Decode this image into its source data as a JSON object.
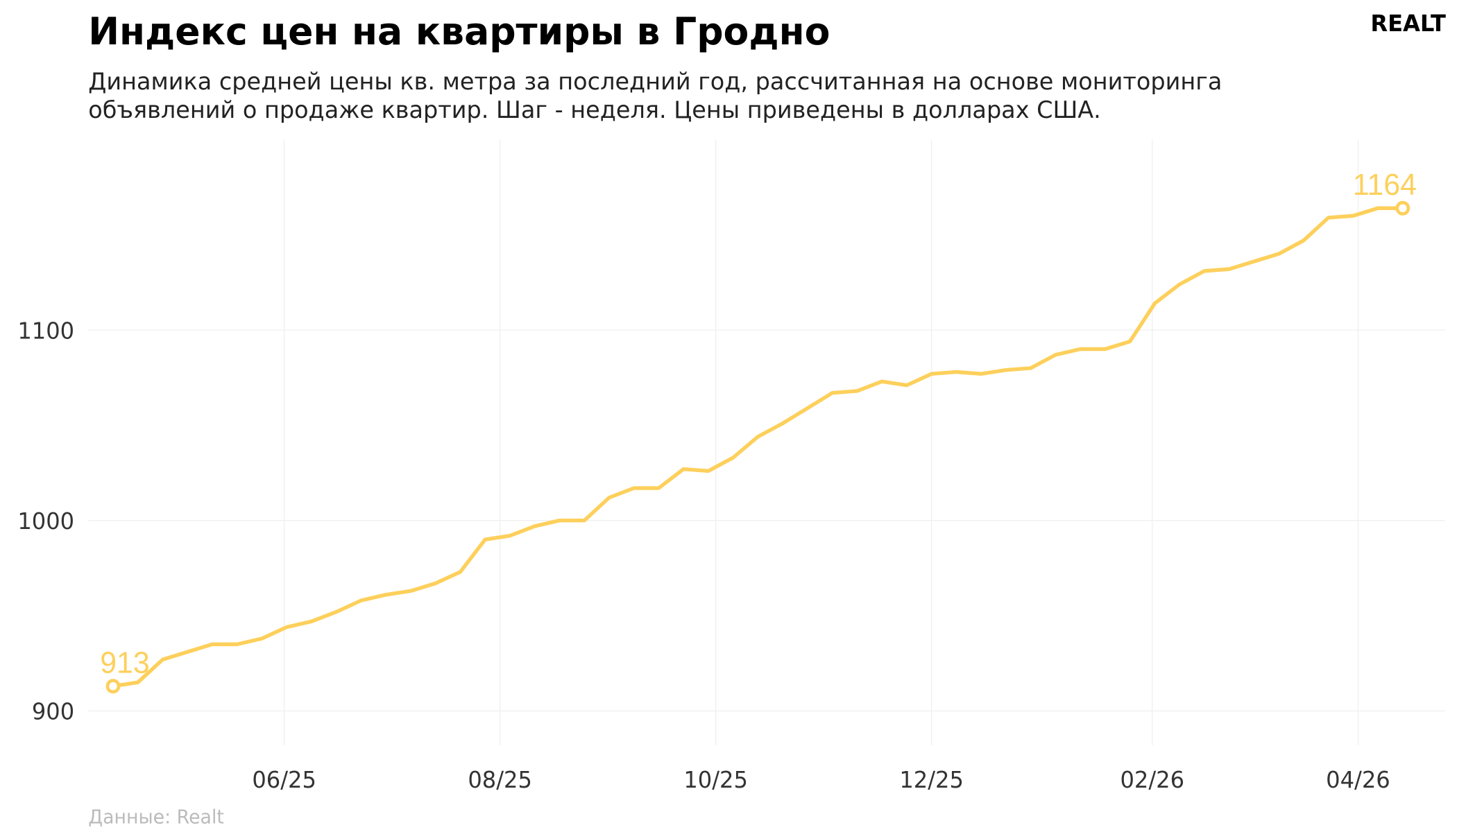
{
  "chart_data": {
    "type": "line",
    "title": "Индекс цен на квартиры в Гродно",
    "subtitle": [
      "Динамика средней цены кв. метра за последний год, рассчитанная на основе мониторинга",
      "объявлений о продаже квартир. Шаг - неделя. Цены приведены в долларах США."
    ],
    "logo": "REALT",
    "source": "Данные: Realt",
    "color": "#fdd05c",
    "grid": true,
    "values": [
      913,
      915,
      927,
      931,
      935,
      935,
      938,
      944,
      947,
      952,
      958,
      961,
      963,
      967,
      973,
      990,
      992,
      997,
      1000,
      1000,
      1012,
      1017,
      1017,
      1027,
      1026,
      1033,
      1044,
      1051,
      1059,
      1067,
      1068,
      1073,
      1071,
      1077,
      1078,
      1077,
      1079,
      1080,
      1087,
      1090,
      1090,
      1094,
      1114,
      1124,
      1131,
      1132,
      1136,
      1140,
      1147,
      1159,
      1160,
      1164,
      1164
    ],
    "xlim": [
      -1,
      53.7
    ],
    "xticks": [
      {
        "value": 6.9,
        "label": "06/25"
      },
      {
        "value": 15.6,
        "label": "08/25"
      },
      {
        "value": 24.3,
        "label": "10/25"
      },
      {
        "value": 33,
        "label": "12/25"
      },
      {
        "value": 41.9,
        "label": "02/26"
      },
      {
        "value": 50.2,
        "label": "04/26"
      }
    ],
    "ylim": [
      882,
      1200
    ],
    "yticks": [
      900,
      1000,
      1100
    ]
  }
}
